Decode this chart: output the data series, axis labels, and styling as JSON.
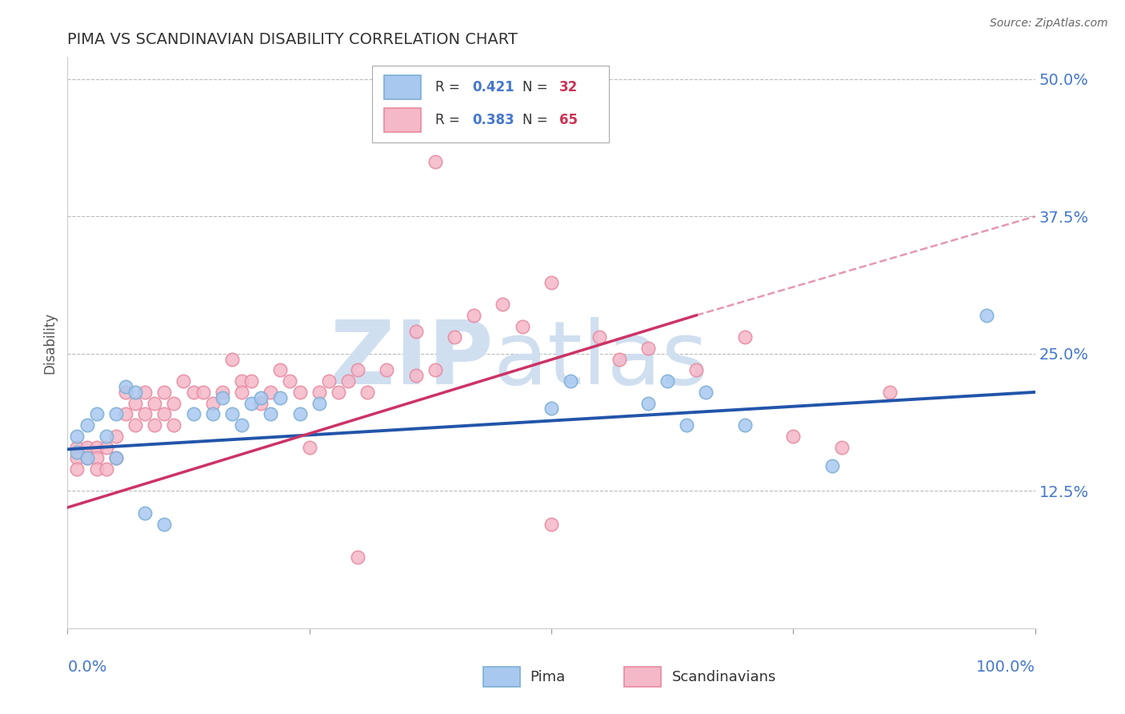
{
  "title": "PIMA VS SCANDINAVIAN DISABILITY CORRELATION CHART",
  "source": "Source: ZipAtlas.com",
  "ylabel": "Disability",
  "xlim": [
    0.0,
    1.0
  ],
  "ylim": [
    0.0,
    0.52
  ],
  "yticks": [
    0.0,
    0.125,
    0.25,
    0.375,
    0.5
  ],
  "ytick_labels": [
    "",
    "12.5%",
    "25.0%",
    "37.5%",
    "50.0%"
  ],
  "xtick_labels": [
    "0.0%",
    "100.0%"
  ],
  "pima_R": "0.421",
  "pima_N": "32",
  "scand_R": "0.383",
  "scand_N": "65",
  "pima_dot_color": "#a8c8f0",
  "pima_dot_edge": "#7bafd4",
  "scand_dot_color": "#f5b8c8",
  "scand_dot_edge": "#e88aa0",
  "trend_blue": "#2255aa",
  "trend_pink": "#cc3366",
  "background": "#ffffff",
  "grid_color": "#bbbbbb",
  "watermark_color": "#d0dff0",
  "axis_label_color": "#4477cc",
  "title_color": "#333333",
  "legend_R_color": "#4477cc",
  "legend_N_color": "#cc3355",
  "pima_x": [
    0.01,
    0.01,
    0.02,
    0.02,
    0.03,
    0.04,
    0.05,
    0.05,
    0.06,
    0.07,
    0.08,
    0.1,
    0.13,
    0.15,
    0.16,
    0.17,
    0.18,
    0.19,
    0.2,
    0.21,
    0.22,
    0.24,
    0.26,
    0.5,
    0.52,
    0.6,
    0.62,
    0.64,
    0.66,
    0.7,
    0.79,
    0.95
  ],
  "pima_y": [
    0.175,
    0.16,
    0.185,
    0.155,
    0.195,
    0.175,
    0.195,
    0.155,
    0.22,
    0.215,
    0.105,
    0.095,
    0.195,
    0.195,
    0.21,
    0.195,
    0.185,
    0.205,
    0.21,
    0.195,
    0.21,
    0.195,
    0.205,
    0.2,
    0.225,
    0.205,
    0.225,
    0.185,
    0.215,
    0.185,
    0.148,
    0.285
  ],
  "scand_x": [
    0.01,
    0.01,
    0.01,
    0.02,
    0.02,
    0.03,
    0.03,
    0.03,
    0.04,
    0.04,
    0.05,
    0.05,
    0.06,
    0.06,
    0.07,
    0.07,
    0.08,
    0.08,
    0.09,
    0.09,
    0.1,
    0.1,
    0.11,
    0.11,
    0.12,
    0.13,
    0.14,
    0.15,
    0.16,
    0.17,
    0.18,
    0.18,
    0.19,
    0.2,
    0.21,
    0.22,
    0.23,
    0.24,
    0.25,
    0.26,
    0.27,
    0.28,
    0.29,
    0.3,
    0.31,
    0.33,
    0.36,
    0.36,
    0.38,
    0.4,
    0.42,
    0.45,
    0.47,
    0.5,
    0.38,
    0.5,
    0.55,
    0.57,
    0.6,
    0.65,
    0.7,
    0.75,
    0.8,
    0.85,
    0.3
  ],
  "scand_y": [
    0.165,
    0.155,
    0.145,
    0.165,
    0.155,
    0.165,
    0.155,
    0.145,
    0.165,
    0.145,
    0.175,
    0.155,
    0.215,
    0.195,
    0.205,
    0.185,
    0.215,
    0.195,
    0.205,
    0.185,
    0.215,
    0.195,
    0.205,
    0.185,
    0.225,
    0.215,
    0.215,
    0.205,
    0.215,
    0.245,
    0.225,
    0.215,
    0.225,
    0.205,
    0.215,
    0.235,
    0.225,
    0.215,
    0.165,
    0.215,
    0.225,
    0.215,
    0.225,
    0.235,
    0.215,
    0.235,
    0.23,
    0.27,
    0.235,
    0.265,
    0.285,
    0.295,
    0.275,
    0.095,
    0.425,
    0.315,
    0.265,
    0.245,
    0.255,
    0.235,
    0.265,
    0.175,
    0.165,
    0.215,
    0.065
  ],
  "trend_pima_x0": 0.0,
  "trend_pima_y0": 0.163,
  "trend_pima_x1": 1.0,
  "trend_pima_y1": 0.215,
  "trend_scand_solid_x0": 0.0,
  "trend_scand_solid_y0": 0.11,
  "trend_scand_solid_x1": 0.65,
  "trend_scand_solid_y1": 0.285,
  "trend_scand_dash_x0": 0.65,
  "trend_scand_dash_y0": 0.285,
  "trend_scand_dash_x1": 1.0,
  "trend_scand_dash_y1": 0.375
}
